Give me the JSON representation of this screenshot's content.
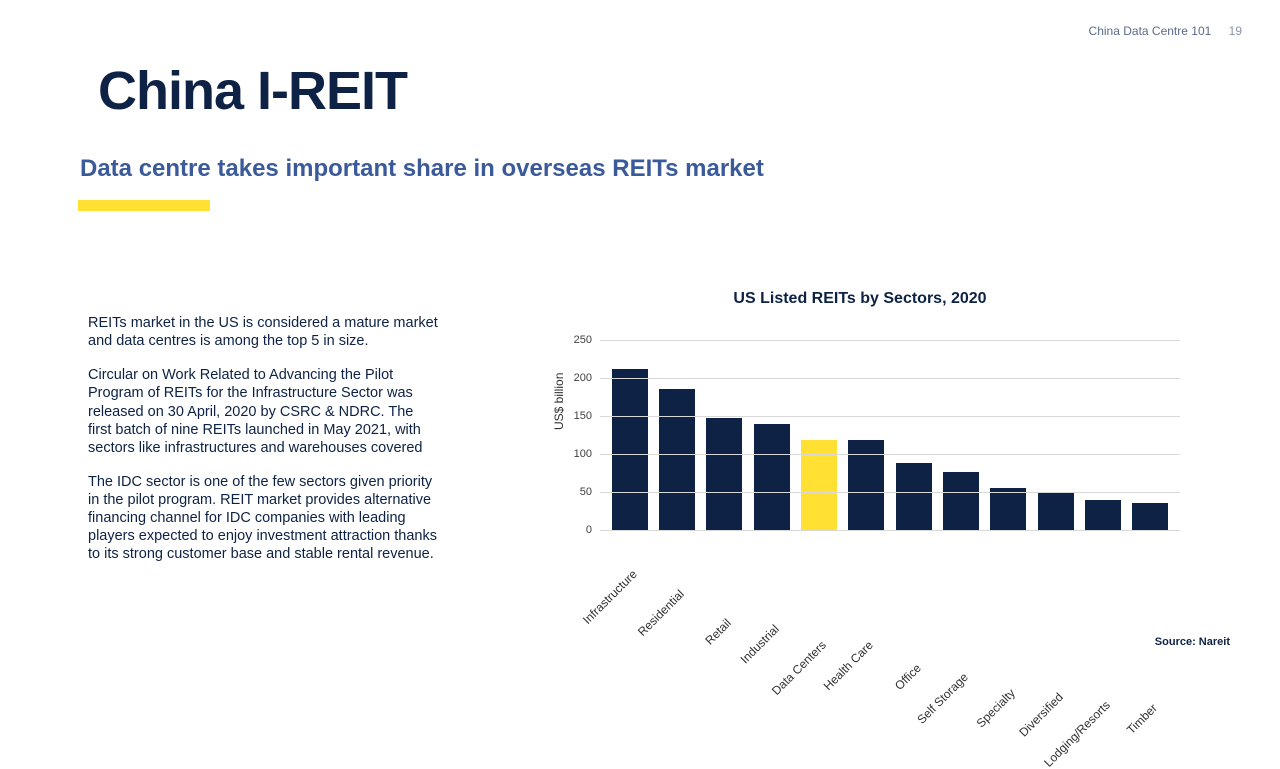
{
  "header": {
    "doc_label": "China Data Centre 101",
    "page_number": "19"
  },
  "title": "China I-REIT",
  "subtitle": "Data centre takes important share in overseas REITs market",
  "accent_color": "#ffe033",
  "body_paragraphs": [
    "REITs market in the US is considered a mature market and data centres is among the top 5 in size.",
    "Circular on Work Related to Advancing the Pilot Program of REITs for the Infrastructure Sector was released on 30 April, 2020 by CSRC & NDRC. The first batch of nine REITs launched in May 2021, with sectors like infrastructures and warehouses covered",
    "The IDC sector is one of the few sectors given priority in the pilot program. REIT market provides alternative financing channel for IDC companies with leading players expected to enjoy investment attraction thanks to its strong customer base and stable rental revenue."
  ],
  "chart": {
    "type": "bar",
    "title": "US Listed REITs by Sectors, 2020",
    "ylabel": "US$ billion",
    "ylim": [
      0,
      250
    ],
    "ytick_step": 50,
    "yticks": [
      0,
      50,
      100,
      150,
      200,
      250
    ],
    "grid_color": "#d8d8d8",
    "background_color": "#ffffff",
    "bar_default_color": "#0d2244",
    "bar_highlight_color": "#ffe033",
    "label_fontsize": 12,
    "title_fontsize": 16,
    "categories": [
      "Infrastructure",
      "Residential",
      "Retail",
      "Industrial",
      "Data Centers",
      "Health Care",
      "Office",
      "Self Storage",
      "Specialty",
      "Diversified",
      "Lodging/Resorts",
      "Timber"
    ],
    "values": [
      212,
      185,
      148,
      140,
      118,
      118,
      88,
      76,
      55,
      50,
      40,
      35
    ],
    "highlight_index": 4,
    "source": "Source: Nareit"
  }
}
